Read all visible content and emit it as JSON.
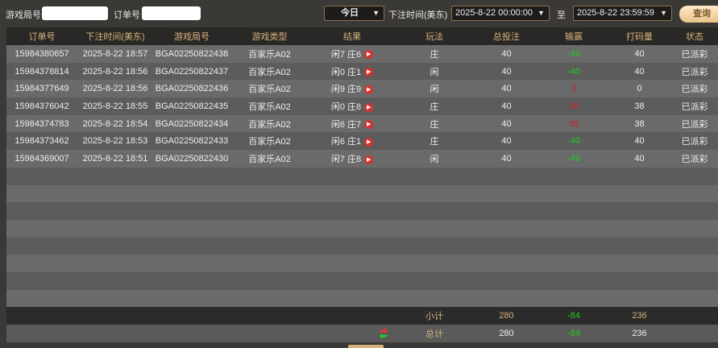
{
  "filters": {
    "game_round_label": "游戏局号",
    "game_round_value": "",
    "order_label": "订单号",
    "order_value": "",
    "period": "今日",
    "time_label": "下注时间(美东)",
    "start": "2025-8-22 00:00:00",
    "to_label": "至",
    "end": "2025-8-22 23:59:59",
    "query": "查询"
  },
  "columns": [
    "订单号",
    "下注时间(美东)",
    "游戏局号",
    "游戏类型",
    "结果",
    "玩法",
    "总投注",
    "输赢",
    "打码量",
    "状态"
  ],
  "rows": [
    {
      "order": "15984380657",
      "time": "2025-8-22 18:57",
      "round": "BGA02250822438",
      "type": "百家乐A02",
      "result": "闲7 庄6",
      "play": "庄",
      "bet": "40",
      "win": "-40",
      "win_state": "win",
      "valid": "40",
      "status": "已派彩"
    },
    {
      "order": "15984378814",
      "time": "2025-8-22 18:56",
      "round": "BGA02250822437",
      "type": "百家乐A02",
      "result": "闲0 庄1",
      "play": "闲",
      "bet": "40",
      "win": "-40",
      "win_state": "win",
      "valid": "40",
      "status": "已派彩"
    },
    {
      "order": "15984377649",
      "time": "2025-8-22 18:56",
      "round": "BGA02250822436",
      "type": "百家乐A02",
      "result": "闲9 庄9",
      "play": "闲",
      "bet": "40",
      "win": "0",
      "win_state": "lose",
      "valid": "0",
      "status": "已派彩"
    },
    {
      "order": "15984376042",
      "time": "2025-8-22 18:55",
      "round": "BGA02250822435",
      "type": "百家乐A02",
      "result": "闲0 庄8",
      "play": "庄",
      "bet": "40",
      "win": "38",
      "win_state": "lose",
      "valid": "38",
      "status": "已派彩"
    },
    {
      "order": "15984374783",
      "time": "2025-8-22 18:54",
      "round": "BGA02250822434",
      "type": "百家乐A02",
      "result": "闲6 庄7",
      "play": "庄",
      "bet": "40",
      "win": "38",
      "win_state": "lose",
      "valid": "38",
      "status": "已派彩"
    },
    {
      "order": "15984373462",
      "time": "2025-8-22 18:53",
      "round": "BGA02250822433",
      "type": "百家乐A02",
      "result": "闲6 庄1",
      "play": "庄",
      "bet": "40",
      "win": "-40",
      "win_state": "win",
      "valid": "40",
      "status": "已派彩"
    },
    {
      "order": "15984369007",
      "time": "2025-8-22 18:51",
      "round": "BGA02250822430",
      "type": "百家乐A02",
      "result": "闲7 庄8",
      "play": "闲",
      "bet": "40",
      "win": "-40",
      "win_state": "win",
      "valid": "40",
      "status": "已派彩"
    }
  ],
  "subtotal": {
    "label": "小计",
    "bet": "280",
    "win": "-84",
    "valid": "236"
  },
  "total": {
    "label": "总计",
    "bet": "280",
    "win": "-84",
    "valid": "236"
  },
  "colors": {
    "accent": "#d6b27c",
    "green": "#22cc22",
    "red": "#cc2222"
  }
}
